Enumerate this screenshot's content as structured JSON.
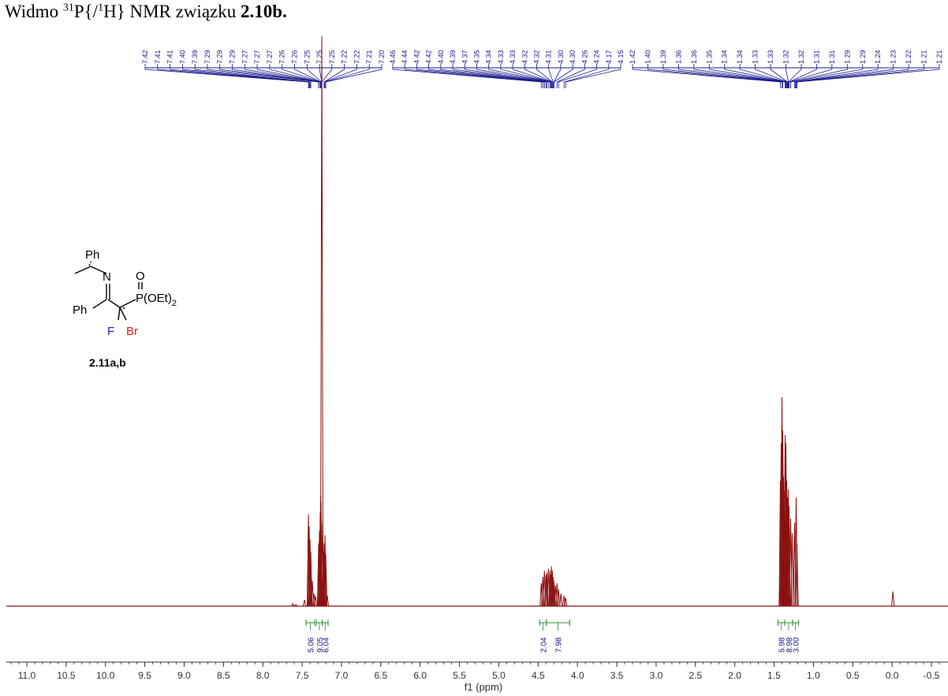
{
  "caption": {
    "prefix": "Widmo ",
    "sup1": "31",
    "p_open": "P{/",
    "sup2": "1",
    "h_close": "H} NMR związku ",
    "compound": "2.10b."
  },
  "molecule": {
    "ph_top": "Ph",
    "n": "N",
    "o": "O",
    "p_group": "P(OEt)",
    "p_sub": "2",
    "ph_left": "Ph",
    "star": "*",
    "f": "F",
    "br": "Br",
    "compound_label": "2.11a,b",
    "colors": {
      "F": "#1f1fd6",
      "Br": "#e0201b"
    }
  },
  "chart_data": {
    "type": "line",
    "title": "",
    "xlabel": "f1 (ppm)",
    "ylabel": "",
    "xlim": [
      11.3,
      -0.7
    ],
    "x_reversed": true,
    "xticks": [
      11.0,
      10.5,
      10.0,
      9.5,
      9.0,
      8.5,
      8.0,
      7.5,
      7.0,
      6.5,
      6.0,
      5.5,
      5.0,
      4.5,
      4.0,
      3.5,
      3.0,
      2.5,
      2.0,
      1.5,
      1.0,
      0.5,
      0.0,
      -0.5
    ],
    "xtick_labels": [
      "11.0",
      "10.5",
      "10.0",
      "9.5",
      "9.0",
      "8.5",
      "8.0",
      "7.5",
      "7.0",
      "6.5",
      "6.0",
      "5.5",
      "5.0",
      "4.5",
      "4.0",
      "3.5",
      "3.0",
      "2.5",
      "2.0",
      "1.5",
      "1.0",
      "0.5",
      "0.0",
      "-0.5"
    ],
    "colors": {
      "spectrum": "#8b1010",
      "peak_labels": "#1a1a8c",
      "integrals": "#2e8b2e"
    },
    "peaks": [
      {
        "ppm": 7.62,
        "height": 0.012
      },
      {
        "ppm": 7.58,
        "height": 0.008
      },
      {
        "ppm": 7.47,
        "height": 0.03
      },
      {
        "ppm": 7.42,
        "height": 0.44
      },
      {
        "ppm": 7.41,
        "height": 0.38
      },
      {
        "ppm": 7.4,
        "height": 0.32
      },
      {
        "ppm": 7.39,
        "height": 0.26
      },
      {
        "ppm": 7.37,
        "height": 0.12
      },
      {
        "ppm": 7.35,
        "height": 0.06
      },
      {
        "ppm": 7.33,
        "height": 0.05
      },
      {
        "ppm": 7.29,
        "height": 0.3
      },
      {
        "ppm": 7.28,
        "height": 0.36
      },
      {
        "ppm": 7.27,
        "height": 0.45
      },
      {
        "ppm": 7.265,
        "height": 0.53
      },
      {
        "ppm": 7.26,
        "height": 0.5
      },
      {
        "ppm": 7.25,
        "height": 3.0
      },
      {
        "ppm": 7.24,
        "height": 0.4
      },
      {
        "ppm": 7.23,
        "height": 0.26
      },
      {
        "ppm": 7.22,
        "height": 0.3
      },
      {
        "ppm": 7.21,
        "height": 0.34
      },
      {
        "ppm": 7.2,
        "height": 0.25
      },
      {
        "ppm": 7.18,
        "height": 0.05
      },
      {
        "ppm": 4.46,
        "height": 0.11
      },
      {
        "ppm": 4.44,
        "height": 0.14
      },
      {
        "ppm": 4.42,
        "height": 0.17
      },
      {
        "ppm": 4.4,
        "height": 0.15
      },
      {
        "ppm": 4.39,
        "height": 0.16
      },
      {
        "ppm": 4.37,
        "height": 0.18
      },
      {
        "ppm": 4.35,
        "height": 0.17
      },
      {
        "ppm": 4.34,
        "height": 0.15
      },
      {
        "ppm": 4.33,
        "height": 0.19
      },
      {
        "ppm": 4.32,
        "height": 0.17
      },
      {
        "ppm": 4.31,
        "height": 0.14
      },
      {
        "ppm": 4.3,
        "height": 0.12
      },
      {
        "ppm": 4.28,
        "height": 0.1
      },
      {
        "ppm": 4.26,
        "height": 0.11
      },
      {
        "ppm": 4.24,
        "height": 0.08
      },
      {
        "ppm": 4.21,
        "height": 0.06
      },
      {
        "ppm": 4.17,
        "height": 0.05
      },
      {
        "ppm": 4.15,
        "height": 0.04
      },
      {
        "ppm": 1.42,
        "height": 0.6
      },
      {
        "ppm": 1.41,
        "height": 0.78
      },
      {
        "ppm": 1.4,
        "height": 1.0
      },
      {
        "ppm": 1.39,
        "height": 0.84
      },
      {
        "ppm": 1.38,
        "height": 0.62
      },
      {
        "ppm": 1.37,
        "height": 0.55
      },
      {
        "ppm": 1.36,
        "height": 0.82
      },
      {
        "ppm": 1.35,
        "height": 0.78
      },
      {
        "ppm": 1.34,
        "height": 0.6
      },
      {
        "ppm": 1.33,
        "height": 0.52
      },
      {
        "ppm": 1.32,
        "height": 0.56
      },
      {
        "ppm": 1.31,
        "height": 0.48
      },
      {
        "ppm": 1.29,
        "height": 0.42
      },
      {
        "ppm": 1.27,
        "height": 0.35
      },
      {
        "ppm": 1.24,
        "height": 0.4
      },
      {
        "ppm": 1.22,
        "height": 0.52
      },
      {
        "ppm": 1.21,
        "height": 0.3
      },
      {
        "ppm": -0.01,
        "height": 0.07
      }
    ],
    "peak_label_groups": [
      {
        "labels": [
          "7.42",
          "7.41",
          "7.41",
          "7.40",
          "7.39",
          "7.29",
          "7.29",
          "7.29",
          "7.27",
          "7.27",
          "7.27",
          "7.26",
          "7.26",
          "7.25",
          "7.25",
          "7.25",
          "7.22",
          "7.22",
          "7.21",
          "7.20"
        ],
        "ppm": [
          7.42,
          7.41,
          7.41,
          7.4,
          7.39,
          7.29,
          7.29,
          7.29,
          7.27,
          7.27,
          7.27,
          7.26,
          7.26,
          7.25,
          7.25,
          7.25,
          7.22,
          7.22,
          7.21,
          7.2
        ]
      },
      {
        "labels": [
          "4.46",
          "4.44",
          "4.42",
          "4.42",
          "4.40",
          "4.39",
          "4.37",
          "4.35",
          "4.34",
          "4.33",
          "4.33",
          "4.32",
          "4.32",
          "4.31",
          "4.30",
          "4.30",
          "4.26",
          "4.24",
          "4.17",
          "4.15"
        ],
        "ppm": [
          4.46,
          4.44,
          4.42,
          4.42,
          4.4,
          4.39,
          4.37,
          4.35,
          4.34,
          4.33,
          4.33,
          4.32,
          4.32,
          4.31,
          4.3,
          4.3,
          4.26,
          4.24,
          4.17,
          4.15
        ]
      },
      {
        "labels": [
          "1.42",
          "1.40",
          "1.39",
          "1.36",
          "1.36",
          "1.35",
          "1.34",
          "1.34",
          "1.33",
          "1.33",
          "1.32",
          "1.32",
          "1.31",
          "1.31",
          "1.29",
          "1.29",
          "1.24",
          "1.23",
          "1.22",
          "1.21",
          "1.21"
        ],
        "ppm": [
          1.42,
          1.4,
          1.39,
          1.36,
          1.36,
          1.35,
          1.34,
          1.34,
          1.33,
          1.33,
          1.32,
          1.32,
          1.31,
          1.31,
          1.29,
          1.29,
          1.24,
          1.23,
          1.22,
          1.21,
          1.21
        ]
      }
    ],
    "integrals": [
      {
        "from": 7.45,
        "to": 7.34,
        "value": "5.06"
      },
      {
        "from": 7.32,
        "to": 7.245,
        "value": "9.05"
      },
      {
        "from": 7.245,
        "to": 7.17,
        "value": "6.04"
      },
      {
        "from": 4.48,
        "to": 4.395,
        "value": "2.04"
      },
      {
        "from": 4.395,
        "to": 4.1,
        "value": "7.98"
      },
      {
        "from": 1.45,
        "to": 1.365,
        "value": "5.98"
      },
      {
        "from": 1.365,
        "to": 1.265,
        "value": "8.98"
      },
      {
        "from": 1.265,
        "to": 1.19,
        "value": "3.00"
      }
    ]
  }
}
